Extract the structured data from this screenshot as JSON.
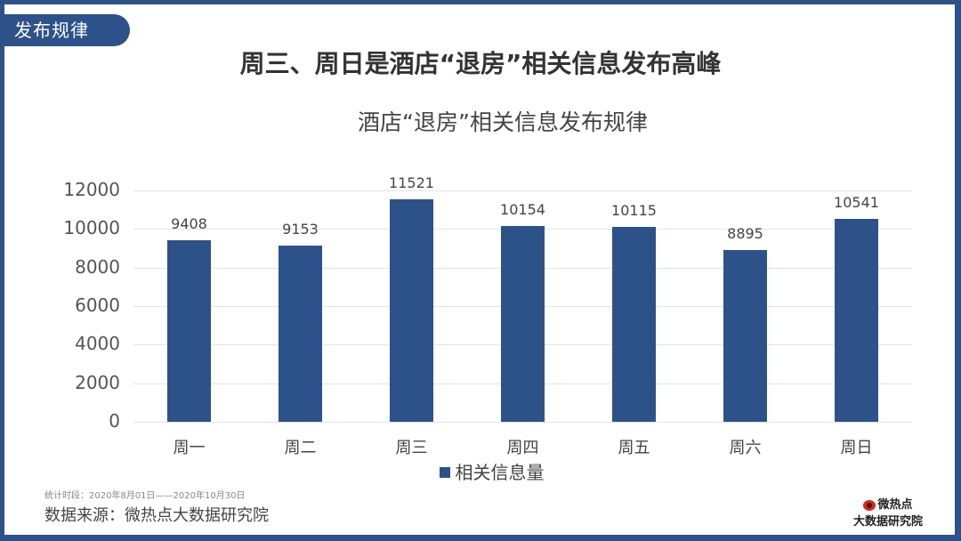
{
  "tag": {
    "label": "发布规律"
  },
  "headline": "周三、周日是酒店“退房”相关信息发布高峰",
  "chart_data": {
    "type": "bar",
    "title": "酒店“退房”相关信息发布规律",
    "categories": [
      "周一",
      "周二",
      "周三",
      "周四",
      "周五",
      "周六",
      "周日"
    ],
    "series": [
      {
        "name": "相关信息量",
        "values": [
          9408,
          9153,
          11521,
          10154,
          10115,
          8895,
          10541
        ],
        "color": "#2d5289"
      }
    ],
    "xlabel": "",
    "ylabel": "",
    "ylim": [
      0,
      12000
    ],
    "yticks": [
      0,
      2000,
      4000,
      6000,
      8000,
      10000,
      12000
    ],
    "grid": true,
    "legend_position": "bottom",
    "data_labels": true
  },
  "footer": {
    "period": "统计时段：2020年8月01日——2020年10月30日",
    "source": "数据来源：微热点大数据研究院"
  },
  "logo": {
    "icon": "weibo-eye-icon",
    "line1": "微热点",
    "line2": "大数据研究院"
  },
  "colors": {
    "brand": "#2d5289",
    "logo_red": "#e2231a"
  }
}
